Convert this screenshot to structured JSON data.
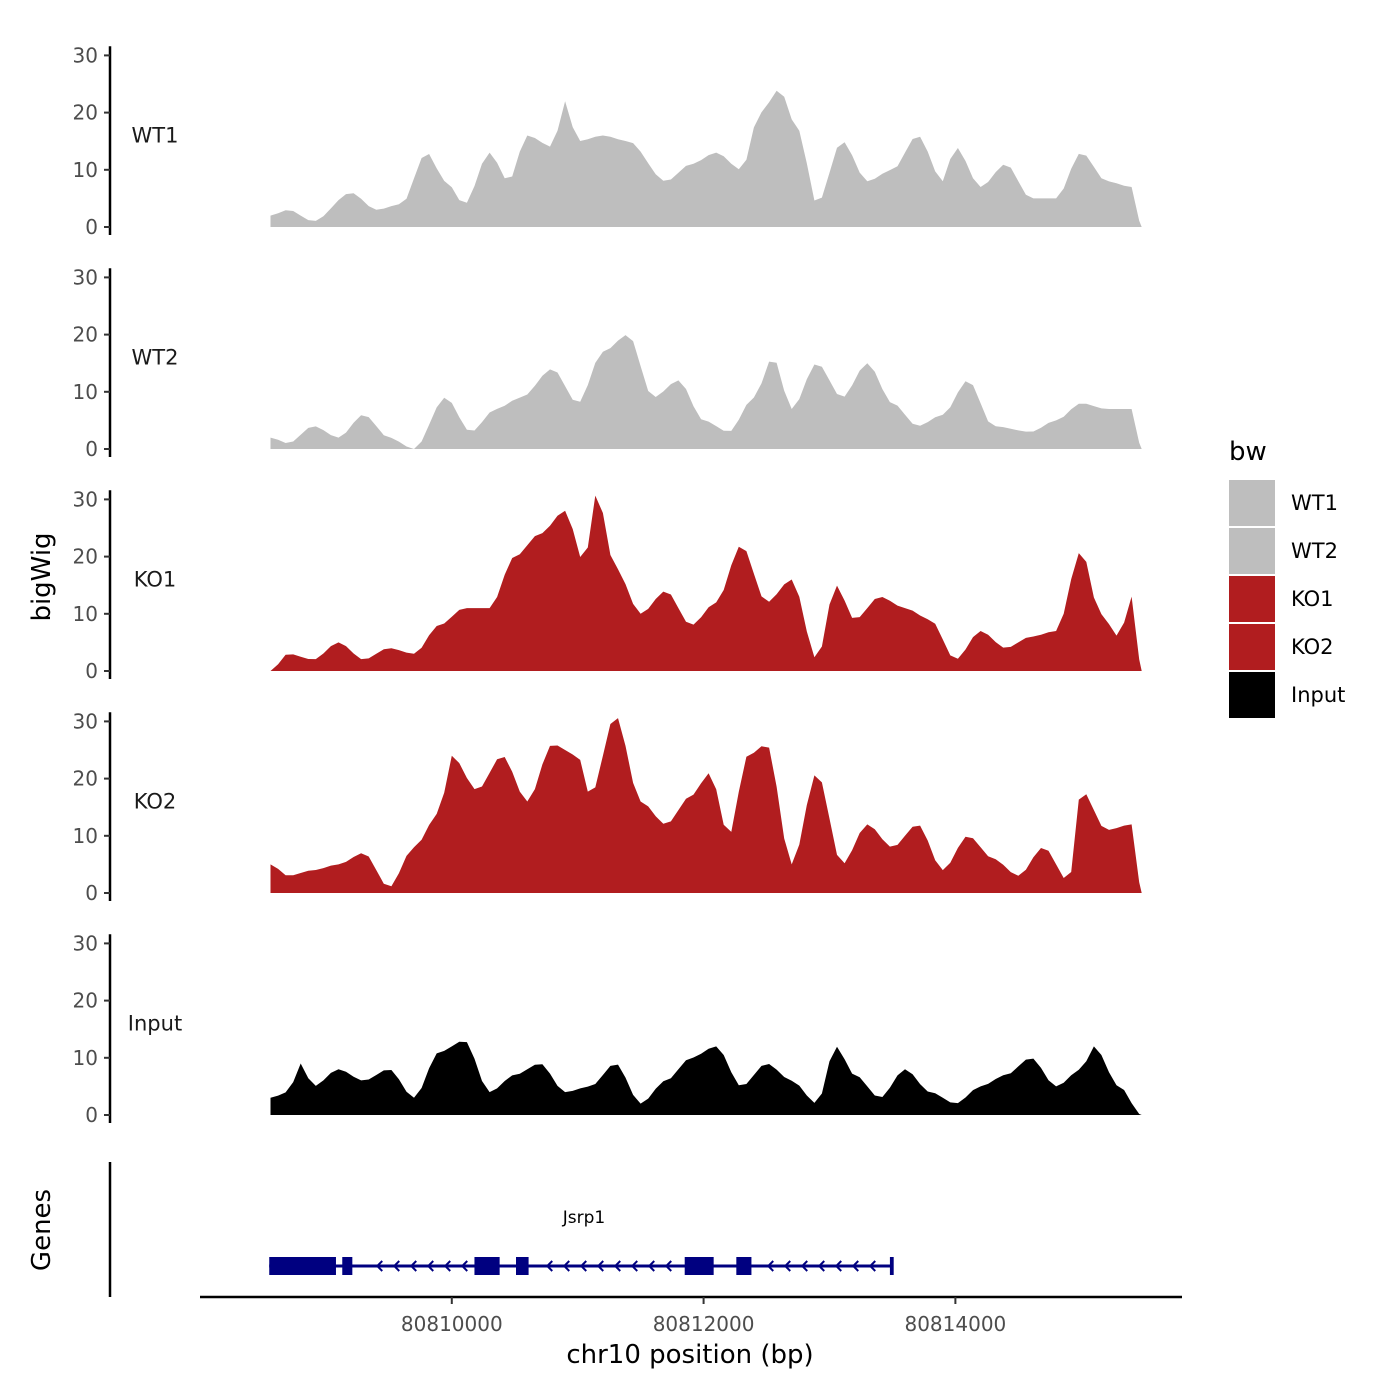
{
  "chart_data": {
    "type": "area",
    "x_axis": {
      "label": "chr10 position (bp)",
      "range": [
        80808000,
        80815800
      ],
      "ticks": [
        80810000,
        80812000,
        80814000
      ],
      "tick_labels": [
        "80810000",
        "80812000",
        "80814000"
      ]
    },
    "y_axis": {
      "label": "bigWig",
      "range": [
        0,
        33
      ],
      "ticks": [
        0,
        10,
        20,
        30
      ],
      "tick_labels": [
        "0",
        "10",
        "20",
        "30"
      ]
    },
    "track_x": {
      "start": 80808560,
      "end": 80815480,
      "step": 60
    },
    "tracks": [
      {
        "name": "WT1",
        "color": "#bebebe",
        "keypoints": [
          [
            80808560,
            2
          ],
          [
            80808700,
            3
          ],
          [
            80808900,
            1
          ],
          [
            80809200,
            6
          ],
          [
            80809400,
            3
          ],
          [
            80809600,
            4
          ],
          [
            80809800,
            13
          ],
          [
            80809950,
            8
          ],
          [
            80810100,
            4
          ],
          [
            80810300,
            13
          ],
          [
            80810450,
            8
          ],
          [
            80810600,
            16
          ],
          [
            80810800,
            14
          ],
          [
            80810900,
            22
          ],
          [
            80811000,
            15
          ],
          [
            80811200,
            16
          ],
          [
            80811400,
            15
          ],
          [
            80811700,
            8
          ],
          [
            80811900,
            11
          ],
          [
            80812100,
            13
          ],
          [
            80812300,
            10
          ],
          [
            80812450,
            20
          ],
          [
            80812600,
            24
          ],
          [
            80812750,
            17
          ],
          [
            80812900,
            4
          ],
          [
            80813100,
            15
          ],
          [
            80813300,
            8
          ],
          [
            80813500,
            10
          ],
          [
            80813700,
            16
          ],
          [
            80813900,
            8
          ],
          [
            80814000,
            14
          ],
          [
            80814200,
            7
          ],
          [
            80814400,
            11
          ],
          [
            80814600,
            5
          ],
          [
            80814800,
            5
          ],
          [
            80815000,
            13
          ],
          [
            80815200,
            8
          ],
          [
            80815400,
            7
          ],
          [
            80815480,
            0
          ]
        ]
      },
      {
        "name": "WT2",
        "color": "#bebebe",
        "keypoints": [
          [
            80808560,
            2
          ],
          [
            80808700,
            1
          ],
          [
            80808900,
            4
          ],
          [
            80809100,
            2
          ],
          [
            80809300,
            6
          ],
          [
            80809500,
            2
          ],
          [
            80809700,
            0
          ],
          [
            80809950,
            9
          ],
          [
            80810150,
            3
          ],
          [
            80810350,
            7
          ],
          [
            80810550,
            9
          ],
          [
            80810800,
            14
          ],
          [
            80811000,
            8
          ],
          [
            80811200,
            17
          ],
          [
            80811400,
            20
          ],
          [
            80811600,
            9
          ],
          [
            80811800,
            12
          ],
          [
            80812000,
            5
          ],
          [
            80812200,
            3
          ],
          [
            80812400,
            9
          ],
          [
            80812550,
            16
          ],
          [
            80812700,
            7
          ],
          [
            80812900,
            15
          ],
          [
            80813100,
            9
          ],
          [
            80813300,
            15
          ],
          [
            80813500,
            8
          ],
          [
            80813700,
            4
          ],
          [
            80813900,
            6
          ],
          [
            80814100,
            12
          ],
          [
            80814300,
            4
          ],
          [
            80814600,
            3
          ],
          [
            80814800,
            5
          ],
          [
            80815000,
            8
          ],
          [
            80815200,
            7
          ],
          [
            80815400,
            7
          ],
          [
            80815480,
            0
          ]
        ]
      },
      {
        "name": "KO1",
        "color": "#b11d1f",
        "keypoints": [
          [
            80808560,
            0
          ],
          [
            80808700,
            3
          ],
          [
            80808900,
            2
          ],
          [
            80809100,
            5
          ],
          [
            80809300,
            2
          ],
          [
            80809500,
            4
          ],
          [
            80809700,
            3
          ],
          [
            80809900,
            8
          ],
          [
            80810100,
            11
          ],
          [
            80810300,
            11
          ],
          [
            80810500,
            20
          ],
          [
            80810700,
            24
          ],
          [
            80810900,
            28
          ],
          [
            80811050,
            19
          ],
          [
            80811150,
            31
          ],
          [
            80811300,
            18
          ],
          [
            80811500,
            10
          ],
          [
            80811700,
            14
          ],
          [
            80811900,
            8
          ],
          [
            80812100,
            12
          ],
          [
            80812300,
            22
          ],
          [
            80812500,
            12
          ],
          [
            80812700,
            16
          ],
          [
            80812900,
            2
          ],
          [
            80813050,
            15
          ],
          [
            80813200,
            9
          ],
          [
            80813400,
            13
          ],
          [
            80813600,
            11
          ],
          [
            80813800,
            9
          ],
          [
            80814000,
            2
          ],
          [
            80814200,
            7
          ],
          [
            80814400,
            4
          ],
          [
            80814600,
            6
          ],
          [
            80814800,
            7
          ],
          [
            80815000,
            21
          ],
          [
            80815150,
            10
          ],
          [
            80815300,
            6
          ],
          [
            80815400,
            13
          ],
          [
            80815480,
            0
          ]
        ]
      },
      {
        "name": "KO2",
        "color": "#b11d1f",
        "keypoints": [
          [
            80808560,
            5
          ],
          [
            80808700,
            3
          ],
          [
            80808900,
            4
          ],
          [
            80809100,
            5
          ],
          [
            80809300,
            7
          ],
          [
            80809500,
            1
          ],
          [
            80809700,
            8
          ],
          [
            80809900,
            14
          ],
          [
            80810000,
            24
          ],
          [
            80810200,
            18
          ],
          [
            80810400,
            24
          ],
          [
            80810600,
            16
          ],
          [
            80810800,
            26
          ],
          [
            80811000,
            24
          ],
          [
            80811100,
            17
          ],
          [
            80811300,
            31
          ],
          [
            80811500,
            16
          ],
          [
            80811700,
            12
          ],
          [
            80811900,
            17
          ],
          [
            80812050,
            21
          ],
          [
            80812200,
            10
          ],
          [
            80812350,
            24
          ],
          [
            80812500,
            26
          ],
          [
            80812700,
            5
          ],
          [
            80812900,
            21
          ],
          [
            80813100,
            5
          ],
          [
            80813300,
            12
          ],
          [
            80813500,
            8
          ],
          [
            80813700,
            12
          ],
          [
            80813900,
            4
          ],
          [
            80814100,
            10
          ],
          [
            80814300,
            6
          ],
          [
            80814500,
            3
          ],
          [
            80814700,
            8
          ],
          [
            80814900,
            2
          ],
          [
            80815000,
            18
          ],
          [
            80815200,
            11
          ],
          [
            80815400,
            12
          ],
          [
            80815480,
            0
          ]
        ]
      },
      {
        "name": "Input",
        "color": "#000000",
        "keypoints": [
          [
            80808560,
            3
          ],
          [
            80808700,
            4
          ],
          [
            80808800,
            9
          ],
          [
            80808900,
            5
          ],
          [
            80809100,
            8
          ],
          [
            80809300,
            6
          ],
          [
            80809500,
            8
          ],
          [
            80809700,
            3
          ],
          [
            80809900,
            11
          ],
          [
            80810100,
            13
          ],
          [
            80810300,
            4
          ],
          [
            80810500,
            7
          ],
          [
            80810700,
            9
          ],
          [
            80810900,
            4
          ],
          [
            80811100,
            5
          ],
          [
            80811300,
            9
          ],
          [
            80811500,
            2
          ],
          [
            80811700,
            6
          ],
          [
            80811900,
            10
          ],
          [
            80812100,
            12
          ],
          [
            80812300,
            5
          ],
          [
            80812500,
            9
          ],
          [
            80812700,
            6
          ],
          [
            80812900,
            2
          ],
          [
            80813050,
            12
          ],
          [
            80813200,
            7
          ],
          [
            80813400,
            3
          ],
          [
            80813600,
            8
          ],
          [
            80813800,
            4
          ],
          [
            80814000,
            2
          ],
          [
            80814200,
            5
          ],
          [
            80814400,
            7
          ],
          [
            80814600,
            10
          ],
          [
            80814800,
            5
          ],
          [
            80815000,
            8
          ],
          [
            80815100,
            12
          ],
          [
            80815300,
            5
          ],
          [
            80815480,
            0
          ]
        ]
      }
    ],
    "gene": {
      "name": "Jsrp1",
      "start": 80808550,
      "end": 80813500,
      "strand": "-",
      "exons": [
        [
          80808550,
          80809080
        ],
        [
          80809130,
          80809210
        ],
        [
          80810180,
          80810380
        ],
        [
          80810510,
          80810610
        ],
        [
          80811850,
          80812080
        ],
        [
          80812260,
          80812380
        ],
        [
          80813480,
          80813510
        ]
      ],
      "color": "#000080"
    },
    "legend": {
      "title": "bw",
      "entries": [
        {
          "label": "WT1",
          "color": "#bebebe"
        },
        {
          "label": "WT2",
          "color": "#bebebe"
        },
        {
          "label": "KO1",
          "color": "#b11d1f"
        },
        {
          "label": "KO2",
          "color": "#b11d1f"
        },
        {
          "label": "Input",
          "color": "#000000"
        }
      ]
    },
    "gene_panel_label": "Genes"
  }
}
